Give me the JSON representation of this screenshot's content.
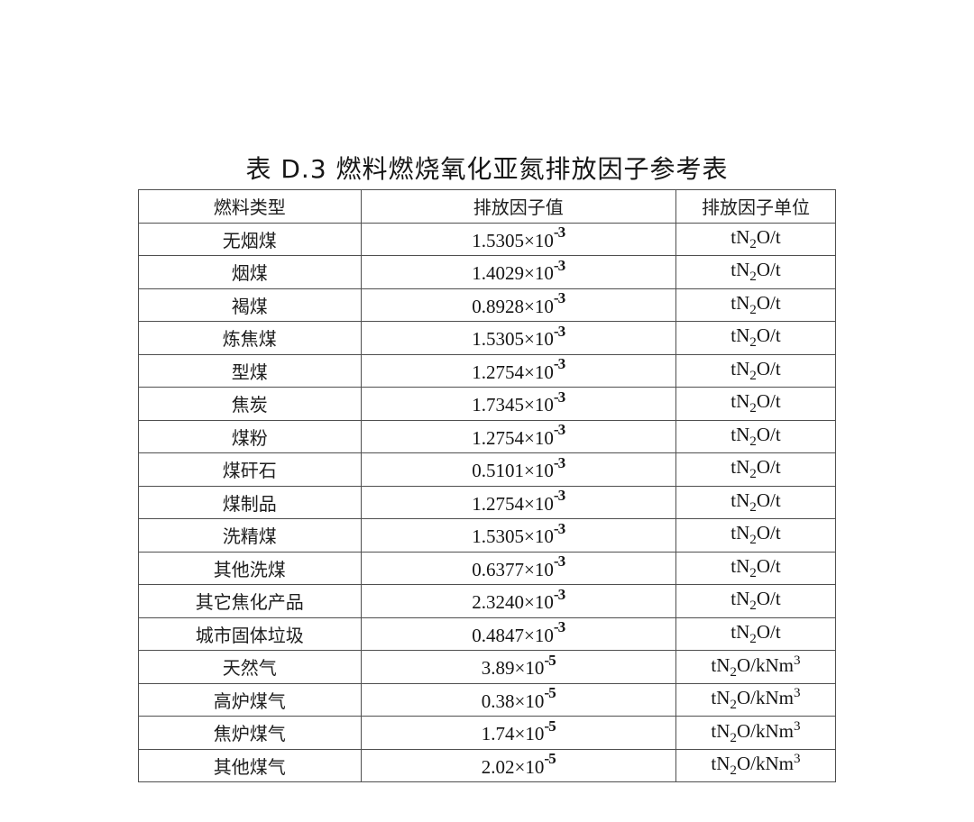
{
  "title": "表 D.3 燃料燃烧氧化亚氮排放因子参考表",
  "colors": {
    "background": "#ffffff",
    "border": "#4f4f4f",
    "text": "#1b1b1b"
  },
  "table": {
    "headers": [
      "燃料类型",
      "排放因子值",
      "排放因子单位"
    ],
    "rows": [
      {
        "fuel": "无烟煤",
        "value_base": "1.5305×10",
        "value_exp": "-3",
        "unit_pre": "tN",
        "unit_sub": "2",
        "unit_mid": "O/t",
        "unit_sup": ""
      },
      {
        "fuel": "烟煤",
        "value_base": "1.4029×10",
        "value_exp": "-3",
        "unit_pre": "tN",
        "unit_sub": "2",
        "unit_mid": "O/t",
        "unit_sup": ""
      },
      {
        "fuel": "褐煤",
        "value_base": "0.8928×10",
        "value_exp": "-3",
        "unit_pre": "tN",
        "unit_sub": "2",
        "unit_mid": "O/t",
        "unit_sup": ""
      },
      {
        "fuel": "炼焦煤",
        "value_base": "1.5305×10",
        "value_exp": "-3",
        "unit_pre": "tN",
        "unit_sub": "2",
        "unit_mid": "O/t",
        "unit_sup": ""
      },
      {
        "fuel": "型煤",
        "value_base": "1.2754×10",
        "value_exp": "-3",
        "unit_pre": "tN",
        "unit_sub": "2",
        "unit_mid": "O/t",
        "unit_sup": ""
      },
      {
        "fuel": "焦炭",
        "value_base": "1.7345×10",
        "value_exp": "-3",
        "unit_pre": "tN",
        "unit_sub": "2",
        "unit_mid": "O/t",
        "unit_sup": ""
      },
      {
        "fuel": "煤粉",
        "value_base": "1.2754×10",
        "value_exp": "-3",
        "unit_pre": "tN",
        "unit_sub": "2",
        "unit_mid": "O/t",
        "unit_sup": ""
      },
      {
        "fuel": "煤矸石",
        "value_base": "0.5101×10",
        "value_exp": "-3",
        "unit_pre": "tN",
        "unit_sub": "2",
        "unit_mid": "O/t",
        "unit_sup": ""
      },
      {
        "fuel": "煤制品",
        "value_base": "1.2754×10",
        "value_exp": "-3",
        "unit_pre": "tN",
        "unit_sub": "2",
        "unit_mid": "O/t",
        "unit_sup": ""
      },
      {
        "fuel": "洗精煤",
        "value_base": "1.5305×10",
        "value_exp": "-3",
        "unit_pre": "tN",
        "unit_sub": "2",
        "unit_mid": "O/t",
        "unit_sup": ""
      },
      {
        "fuel": "其他洗煤",
        "value_base": "0.6377×10",
        "value_exp": "-3",
        "unit_pre": "tN",
        "unit_sub": "2",
        "unit_mid": "O/t",
        "unit_sup": ""
      },
      {
        "fuel": "其它焦化产品",
        "value_base": "2.3240×10",
        "value_exp": "-3",
        "unit_pre": "tN",
        "unit_sub": "2",
        "unit_mid": "O/t",
        "unit_sup": ""
      },
      {
        "fuel": "城市固体垃圾",
        "value_base": "0.4847×10",
        "value_exp": "-3",
        "unit_pre": "tN",
        "unit_sub": "2",
        "unit_mid": "O/t",
        "unit_sup": ""
      },
      {
        "fuel": "天然气",
        "value_base": "3.89×10",
        "value_exp": "-5",
        "unit_pre": "tN",
        "unit_sub": "2",
        "unit_mid": "O/kNm",
        "unit_sup": "3"
      },
      {
        "fuel": "高炉煤气",
        "value_base": "0.38×10",
        "value_exp": "-5",
        "unit_pre": "tN",
        "unit_sub": "2",
        "unit_mid": "O/kNm",
        "unit_sup": "3"
      },
      {
        "fuel": "焦炉煤气",
        "value_base": "1.74×10",
        "value_exp": "-5",
        "unit_pre": "tN",
        "unit_sub": "2",
        "unit_mid": "O/kNm",
        "unit_sup": "3"
      },
      {
        "fuel": "其他煤气",
        "value_base": "2.02×10",
        "value_exp": "-5",
        "unit_pre": "tN",
        "unit_sub": "2",
        "unit_mid": "O/kNm",
        "unit_sup": "3"
      }
    ]
  }
}
